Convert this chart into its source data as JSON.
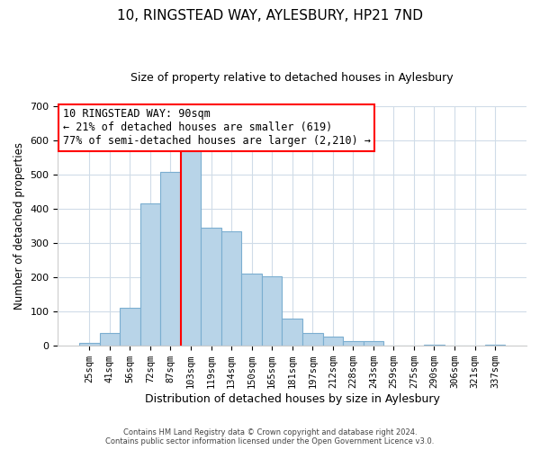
{
  "title": "10, RINGSTEAD WAY, AYLESBURY, HP21 7ND",
  "subtitle": "Size of property relative to detached houses in Aylesbury",
  "xlabel": "Distribution of detached houses by size in Aylesbury",
  "ylabel": "Number of detached properties",
  "categories": [
    "25sqm",
    "41sqm",
    "56sqm",
    "72sqm",
    "87sqm",
    "103sqm",
    "119sqm",
    "134sqm",
    "150sqm",
    "165sqm",
    "181sqm",
    "197sqm",
    "212sqm",
    "228sqm",
    "243sqm",
    "259sqm",
    "275sqm",
    "290sqm",
    "306sqm",
    "321sqm",
    "337sqm"
  ],
  "values": [
    8,
    38,
    112,
    415,
    507,
    575,
    345,
    333,
    210,
    202,
    80,
    37,
    26,
    13,
    13,
    0,
    0,
    2,
    0,
    0,
    2
  ],
  "bar_color": "#b8d4e8",
  "bar_edge_color": "#7baed0",
  "vline_color": "red",
  "vline_x": 4.5,
  "ylim": [
    0,
    700
  ],
  "yticks": [
    0,
    100,
    200,
    300,
    400,
    500,
    600,
    700
  ],
  "annotation_title": "10 RINGSTEAD WAY: 90sqm",
  "annotation_line1": "← 21% of detached houses are smaller (619)",
  "annotation_line2": "77% of semi-detached houses are larger (2,210) →",
  "annotation_box_color": "#ffffff",
  "annotation_box_edgecolor": "red",
  "footer_line1": "Contains HM Land Registry data © Crown copyright and database right 2024.",
  "footer_line2": "Contains public sector information licensed under the Open Government Licence v3.0.",
  "background_color": "#ffffff",
  "grid_color": "#d0dce8"
}
